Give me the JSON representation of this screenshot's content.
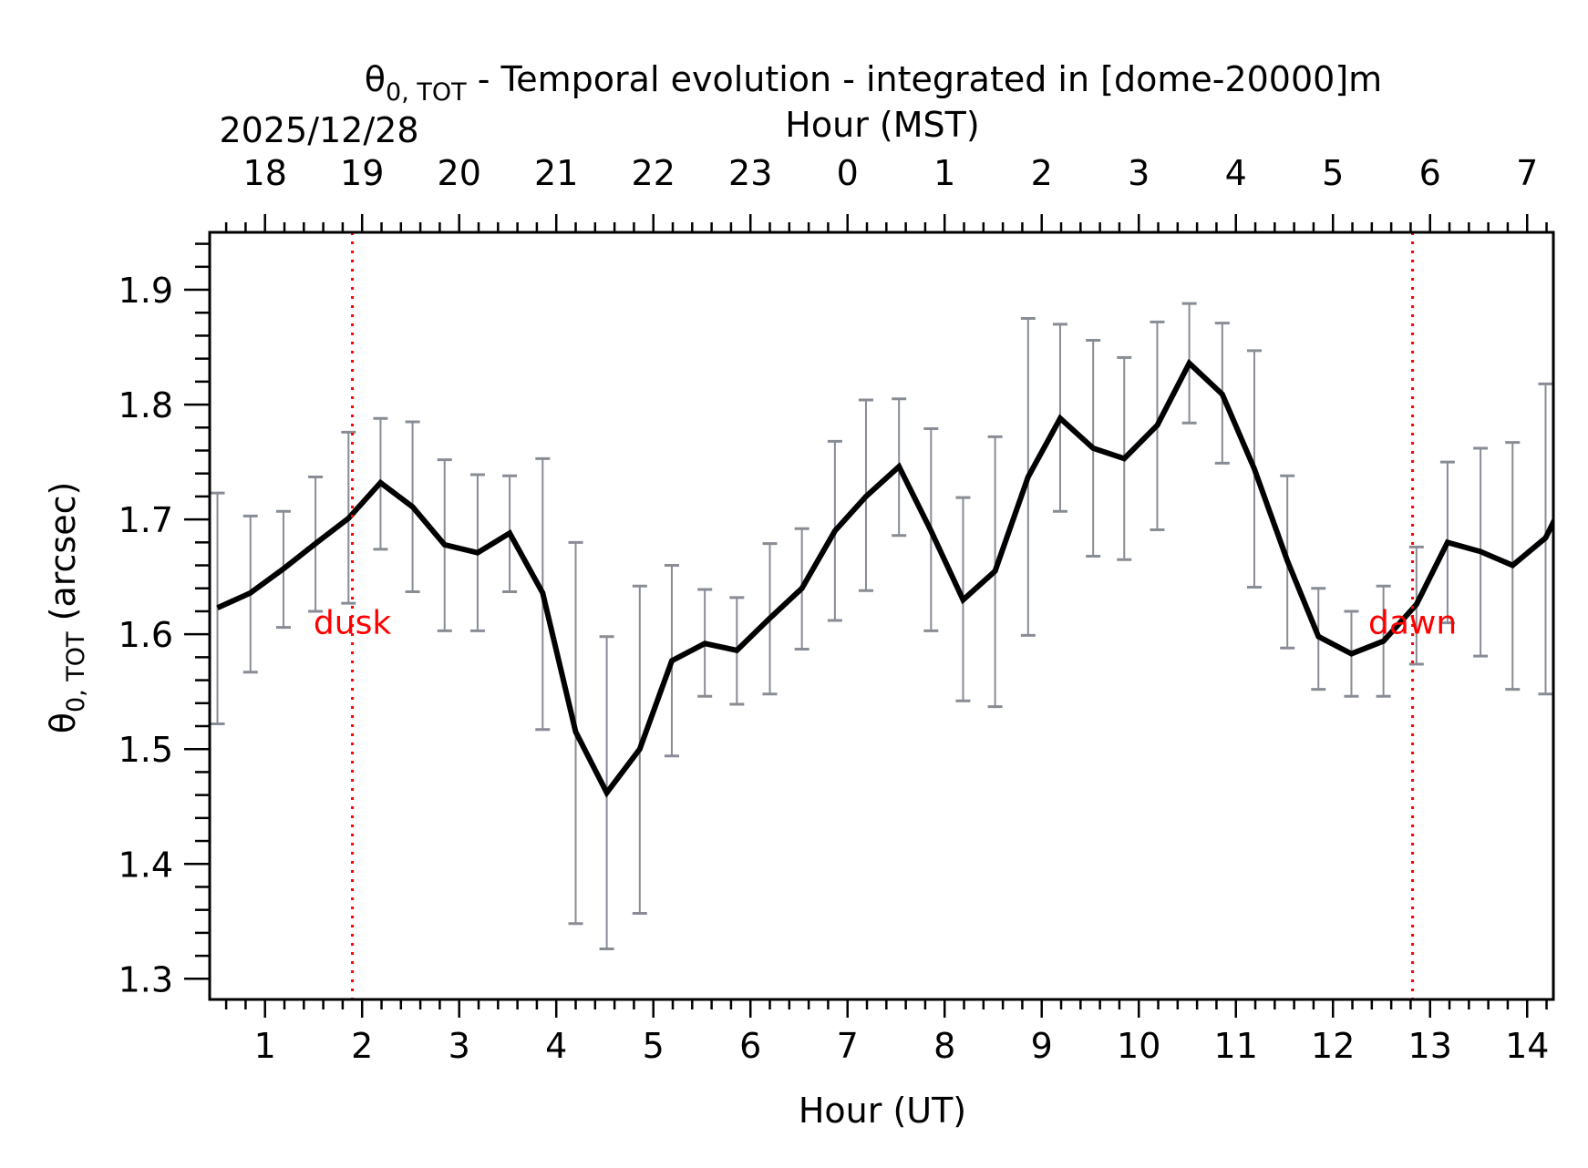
{
  "chart_data": {
    "type": "line",
    "title_symbol": "θ",
    "title_subscript": "0, TOT",
    "title_rest": " - Temporal evolution - integrated in [dome-20000]m",
    "date_label": "2025/12/28",
    "xlabel": "Hour (UT)",
    "xlabel_top": "Hour (MST)",
    "ylabel_symbol": "θ",
    "ylabel_subscript": "0, TOT",
    "ylabel_rest": " (arcsec)",
    "xlim": [
      0.43,
      14.27
    ],
    "ylim": [
      1.282,
      1.95
    ],
    "x_ticks": [
      1,
      2,
      3,
      4,
      5,
      6,
      7,
      8,
      9,
      10,
      11,
      12,
      13,
      14
    ],
    "x_tick_labels": [
      "1",
      "2",
      "3",
      "4",
      "5",
      "6",
      "7",
      "8",
      "9",
      "10",
      "11",
      "12",
      "13",
      "14"
    ],
    "x_top_ticks": [
      1,
      2,
      3,
      4,
      5,
      6,
      7,
      8,
      9,
      10,
      11,
      12,
      13,
      14
    ],
    "x_top_tick_labels": [
      "18",
      "19",
      "20",
      "21",
      "22",
      "23",
      "0",
      "1",
      "2",
      "3",
      "4",
      "5",
      "6",
      "7"
    ],
    "y_ticks": [
      1.3,
      1.4,
      1.5,
      1.6,
      1.7,
      1.8,
      1.9
    ],
    "y_tick_labels": [
      "1.3",
      "1.4",
      "1.5",
      "1.6",
      "1.7",
      "1.8",
      "1.9"
    ],
    "grid": false,
    "series": [
      {
        "name": "theta0_tot",
        "color": "#000000",
        "error_color": "#888c94",
        "x": [
          0.51,
          0.85,
          1.19,
          1.52,
          1.86,
          2.19,
          2.52,
          2.85,
          3.19,
          3.52,
          3.86,
          4.2,
          4.52,
          4.86,
          5.19,
          5.53,
          5.86,
          6.2,
          6.53,
          6.87,
          7.19,
          7.53,
          7.86,
          8.19,
          8.52,
          8.86,
          9.19,
          9.53,
          9.85,
          10.19,
          10.52,
          10.86,
          11.19,
          11.53,
          11.85,
          12.19,
          12.52,
          12.86,
          13.18,
          13.52,
          13.85,
          14.19,
          14.52
        ],
        "y": [
          1.623,
          1.636,
          1.657,
          1.679,
          1.701,
          1.732,
          1.711,
          1.678,
          1.671,
          1.688,
          1.636,
          1.515,
          1.462,
          1.5,
          1.577,
          1.592,
          1.586,
          1.614,
          1.64,
          1.69,
          1.72,
          1.746,
          1.69,
          1.63,
          1.655,
          1.737,
          1.788,
          1.762,
          1.753,
          1.782,
          1.836,
          1.809,
          1.744,
          1.664,
          1.598,
          1.583,
          1.594,
          1.626,
          1.68,
          1.672,
          1.66,
          1.684,
          1.74
        ],
        "err_upper": [
          1.723,
          1.703,
          1.707,
          1.737,
          1.776,
          1.788,
          1.785,
          1.752,
          1.739,
          1.738,
          1.753,
          1.68,
          1.598,
          1.642,
          1.66,
          1.639,
          1.632,
          1.679,
          1.692,
          1.768,
          1.804,
          1.805,
          1.779,
          1.719,
          1.772,
          1.875,
          1.87,
          1.856,
          1.841,
          1.872,
          1.888,
          1.871,
          1.847,
          1.738,
          1.64,
          1.62,
          1.642,
          1.676,
          1.75,
          1.762,
          1.767,
          1.818,
          null
        ],
        "err_lower": [
          1.522,
          1.567,
          1.606,
          1.62,
          1.627,
          1.674,
          1.637,
          1.603,
          1.603,
          1.637,
          1.517,
          1.348,
          1.326,
          1.357,
          1.494,
          1.546,
          1.539,
          1.548,
          1.587,
          1.612,
          1.638,
          1.686,
          1.603,
          1.542,
          1.537,
          1.599,
          1.707,
          1.668,
          1.665,
          1.691,
          1.784,
          1.749,
          1.641,
          1.588,
          1.552,
          1.546,
          1.546,
          1.574,
          1.61,
          1.581,
          1.552,
          1.548,
          null
        ]
      }
    ],
    "annotations": [
      {
        "label": "dusk",
        "x": 1.9,
        "color": "#ff0000",
        "text_y": 1.61
      },
      {
        "label": "dawn",
        "x": 12.82,
        "color": "#ff0000",
        "text_y": 1.61
      }
    ]
  }
}
